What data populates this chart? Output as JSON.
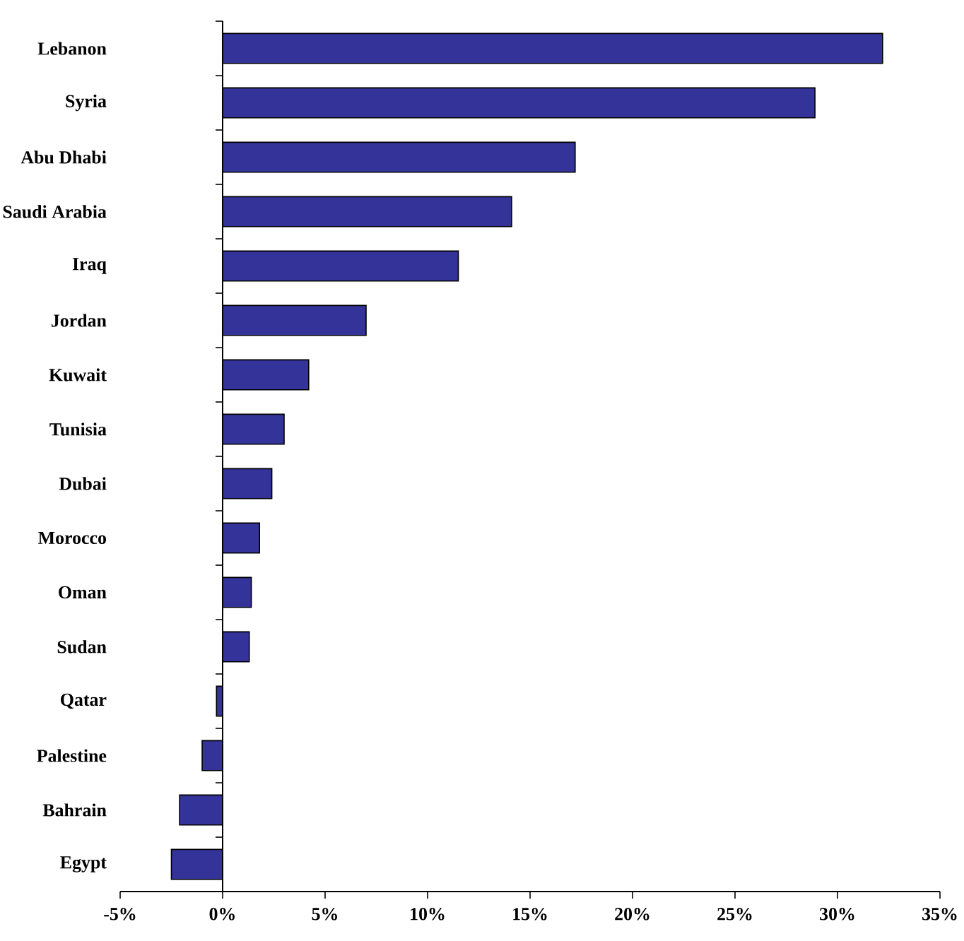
{
  "chart_data": {
    "type": "bar",
    "orientation": "horizontal",
    "categories": [
      "Lebanon",
      "Syria",
      "Abu Dhabi",
      "Saudi Arabia",
      "Iraq",
      "Jordan",
      "Kuwait",
      "Tunisia",
      "Dubai",
      "Morocco",
      "Oman",
      "Sudan",
      "Qatar",
      "Palestine",
      "Bahrain",
      "Egypt"
    ],
    "values": [
      32.2,
      28.9,
      17.2,
      14.1,
      11.5,
      7.0,
      4.2,
      3.0,
      2.4,
      1.8,
      1.4,
      1.3,
      -0.3,
      -1.0,
      -2.1,
      -2.5
    ],
    "color": "#333399",
    "xlim": [
      -5,
      35
    ],
    "xticks": [
      {
        "value": -5,
        "label": "-5%"
      },
      {
        "value": 0,
        "label": "0%"
      },
      {
        "value": 5,
        "label": "5%"
      },
      {
        "value": 10,
        "label": "10%"
      },
      {
        "value": 15,
        "label": "15%"
      },
      {
        "value": 20,
        "label": "20%"
      },
      {
        "value": 25,
        "label": "25%"
      },
      {
        "value": 30,
        "label": "30%"
      },
      {
        "value": 35,
        "label": "35%"
      }
    ]
  }
}
